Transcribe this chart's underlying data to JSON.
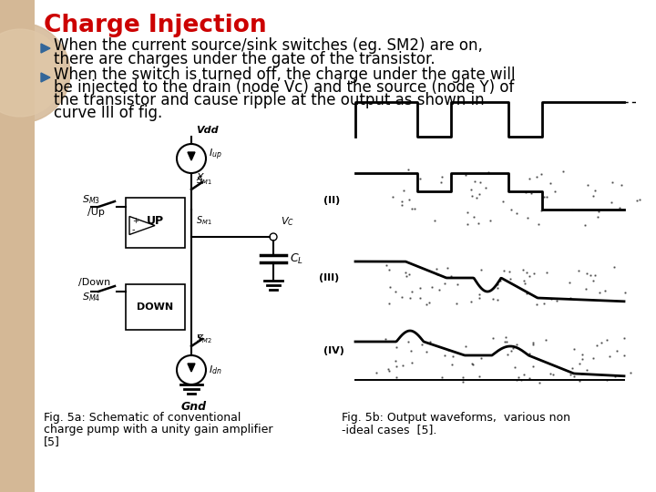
{
  "title": "Charge Injection",
  "title_color": "#CC0000",
  "bg_main": "#FFFFFF",
  "bg_left_strip": "#D4B896",
  "bg_circle_color": "#C8A882",
  "bullet_arrow_color": "#336699",
  "bullet1_line1": "When the current source/sink switches (eg. SM2) are on,",
  "bullet1_line2": "there are charges under the gate of the transistor.",
  "bullet2_line1": "When the switch is turned off, the charge under the gate will",
  "bullet2_line2": "be injected to the drain (node Vc) and the source (node Y) of",
  "bullet2_line3": "the transistor and cause ripple at the output as shown in",
  "bullet2_line4": "curve III of fig.",
  "fig5a_caption_line1": "Fig. 5a: Schematic of conventional",
  "fig5a_caption_line2": "charge pump with a unity gain amplifier",
  "fig5a_caption_line3": "[5]",
  "fig5b_caption_line1": "Fig. 5b: Output waveforms,  various non",
  "fig5b_caption_line2": "-ideal cases  [5].",
  "text_color": "#000000",
  "font_size_title": 19,
  "font_size_body": 12,
  "font_size_caption": 9
}
